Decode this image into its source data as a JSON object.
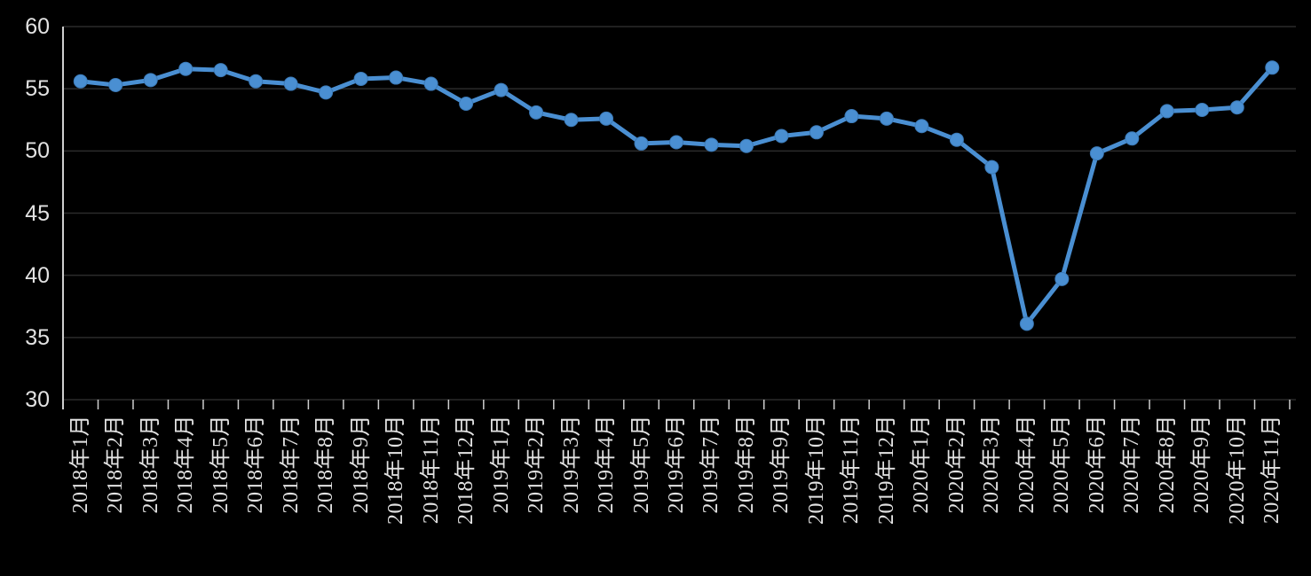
{
  "chart_data": {
    "type": "line",
    "title": "",
    "xlabel": "",
    "ylabel": "",
    "categories": [
      "2018年1月",
      "2018年2月",
      "2018年3月",
      "2018年4月",
      "2018年5月",
      "2018年6月",
      "2018年7月",
      "2018年8月",
      "2018年9月",
      "2018年10月",
      "2018年11月",
      "2018年12月",
      "2019年1月",
      "2019年2月",
      "2019年3月",
      "2019年4月",
      "2019年5月",
      "2019年6月",
      "2019年7月",
      "2019年8月",
      "2019年9月",
      "2019年10月",
      "2019年11月",
      "2019年12月",
      "2020年1月",
      "2020年2月",
      "2020年3月",
      "2020年4月",
      "2020年5月",
      "2020年6月",
      "2020年7月",
      "2020年8月",
      "2020年9月",
      "2020年10月",
      "2020年11月"
    ],
    "values": [
      55.6,
      55.3,
      55.7,
      56.6,
      56.5,
      55.6,
      55.4,
      54.7,
      55.8,
      55.9,
      55.4,
      53.8,
      54.9,
      53.1,
      52.5,
      52.6,
      50.6,
      50.7,
      50.5,
      50.4,
      51.2,
      51.5,
      52.8,
      52.6,
      52.0,
      50.9,
      48.7,
      36.1,
      39.7,
      49.8,
      51.0,
      53.2,
      53.3,
      53.5,
      56.7
    ],
    "ylim": [
      30,
      60
    ],
    "y_tick_values": [
      60,
      55,
      50,
      45,
      40,
      35,
      30
    ],
    "y_tick_labels": [
      "60",
      "55",
      "50",
      "45",
      "40",
      "35",
      "30"
    ],
    "grid": "on",
    "legend": "none",
    "marker": "circle",
    "colors": {
      "background": "#000000",
      "line": "#4a8fd2",
      "marker_fill": "#4a8fd2",
      "marker_stroke": "#3b7ab8",
      "gridline": "#2b2b2b",
      "x_axis_line": "#2b2b2b",
      "y_axis_line": "#cfcfcf",
      "tick": "#cfcfcf",
      "label": "#e2e2e2"
    }
  }
}
